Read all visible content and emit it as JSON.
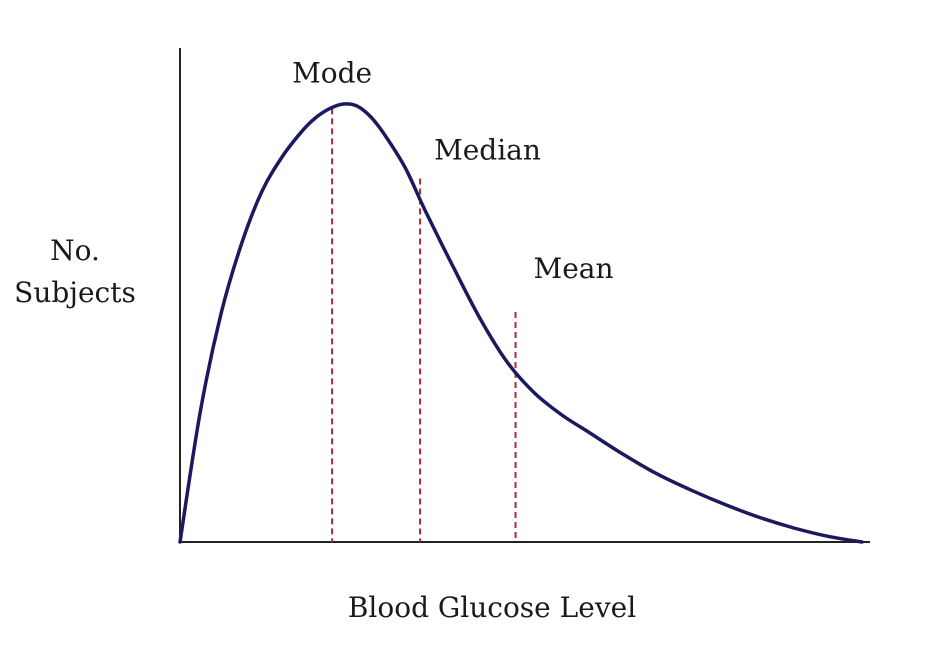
{
  "chart_data": {
    "type": "line",
    "title": "",
    "xlabel": "Blood Glucose Level",
    "ylabel": [
      "No.",
      "Subjects"
    ],
    "show_ticks": false,
    "grid": false,
    "xlim": [
      0,
      100
    ],
    "ylim": [
      0,
      100
    ],
    "series": [
      {
        "curve_color": "#1c1a5e",
        "x": [
          0,
          3,
          6,
          9,
          12,
          15,
          18,
          20,
          22,
          24,
          26,
          28,
          30,
          33,
          36,
          40,
          44,
          48,
          52,
          56,
          60,
          65,
          70,
          75,
          80,
          85,
          90,
          95,
          100
        ],
        "y": [
          0,
          30,
          52,
          68,
          80,
          88,
          94,
          97,
          99,
          100,
          99.5,
          97,
          93,
          85.5,
          75.5,
          63,
          51,
          41,
          34,
          29,
          25,
          20,
          15.5,
          11.8,
          8.5,
          5.6,
          3.2,
          1.3,
          0
        ]
      }
    ],
    "markers": [
      {
        "label": "Mode",
        "x": 22.3,
        "y": 99,
        "color": "#b0283a"
      },
      {
        "label": "Median",
        "x": 35.2,
        "y": 83,
        "color": "#b0283a"
      },
      {
        "label": "Mean",
        "x": 49.2,
        "y": 52.5,
        "color": "#b0283a"
      }
    ]
  }
}
